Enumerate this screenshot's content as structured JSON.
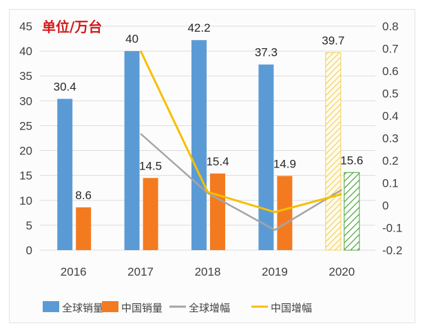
{
  "chart_data": {
    "type": "bar",
    "title": "",
    "unit_label": "单位/万台",
    "categories": [
      "2016",
      "2017",
      "2018",
      "2019",
      "2020"
    ],
    "series": [
      {
        "name": "全球销量",
        "kind": "bar",
        "axis": "left",
        "color": "#5b9bd5",
        "values": [
          30.4,
          40,
          42.2,
          37.3,
          39.7
        ],
        "labels": [
          "30.4",
          "40",
          "42.2",
          "37.3",
          "39.7"
        ],
        "forecast_last": true,
        "forecast_color": "#f0d060"
      },
      {
        "name": "中国销量",
        "kind": "bar",
        "axis": "left",
        "color": "#f47a20",
        "values": [
          8.6,
          14.5,
          15.4,
          14.9,
          15.6
        ],
        "labels": [
          "8.6",
          "14.5",
          "15.4",
          "14.9",
          "15.6"
        ],
        "forecast_last": true,
        "forecast_color": "#4aa53a"
      },
      {
        "name": "全球增幅",
        "kind": "line",
        "axis": "right",
        "color": "#a5a5a5",
        "values": [
          null,
          0.32,
          0.055,
          -0.11,
          0.07
        ]
      },
      {
        "name": "中国增幅",
        "kind": "line",
        "axis": "right",
        "color": "#f5c000",
        "values": [
          null,
          0.69,
          0.06,
          -0.03,
          0.05
        ]
      }
    ],
    "left_axis": {
      "min": 0,
      "max": 45,
      "step": 5,
      "ticks": [
        "0",
        "5",
        "10",
        "15",
        "20",
        "25",
        "30",
        "35",
        "40",
        "45"
      ]
    },
    "right_axis": {
      "min": -0.2,
      "max": 0.8,
      "step": 0.1,
      "ticks": [
        "-0.2",
        "-0.1",
        "0",
        "0.1",
        "0.2",
        "0.3",
        "0.4",
        "0.5",
        "0.6",
        "0.7",
        "0.8"
      ]
    },
    "grid": true,
    "legend_position": "bottom",
    "gridline_color": "#dcdcdc"
  }
}
